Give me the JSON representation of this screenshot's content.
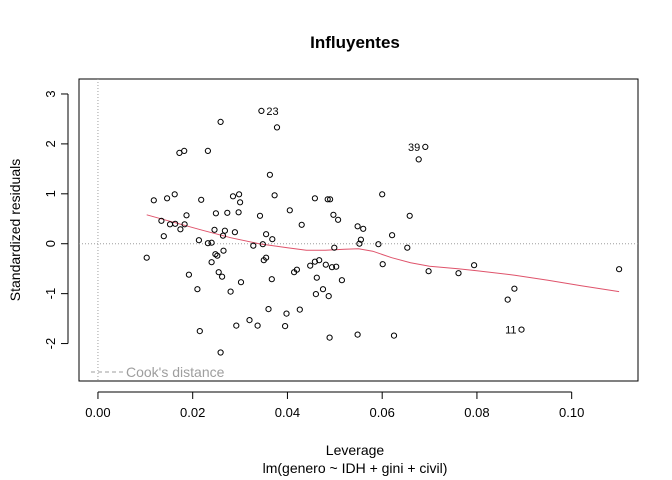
{
  "chart_data": {
    "type": "scatter",
    "title": "Influyentes",
    "xlabel": "Leverage",
    "xlabel2": "lm(genero ~ IDH + gini + civil)",
    "ylabel": "Standardized residuals",
    "xlim": [
      -0.004,
      0.114
    ],
    "ylim": [
      -2.75,
      3.3
    ],
    "x_ticks": [
      0.0,
      0.02,
      0.04,
      0.06,
      0.08,
      0.1
    ],
    "x_tick_labels": [
      "0.00",
      "0.02",
      "0.04",
      "0.06",
      "0.08",
      "0.10"
    ],
    "y_ticks": [
      -2,
      -1,
      0,
      1,
      2,
      3
    ],
    "y_tick_labels": [
      "-2",
      "-1",
      "0",
      "1",
      "2",
      "3"
    ],
    "legend": {
      "label": "Cook's distance",
      "position": "bottom-left",
      "color": "#9e9e9e"
    },
    "colors": {
      "points": "#000000",
      "smooth": "#df536b",
      "reference": "#9e9e9e"
    },
    "points": [
      [
        0.0103,
        -0.28
      ],
      [
        0.0118,
        0.87
      ],
      [
        0.0134,
        0.46
      ],
      [
        0.0139,
        0.15
      ],
      [
        0.0146,
        0.91
      ],
      [
        0.0152,
        0.39
      ],
      [
        0.0162,
        0.99
      ],
      [
        0.0163,
        0.4
      ],
      [
        0.0172,
        1.82
      ],
      [
        0.0174,
        0.29
      ],
      [
        0.0182,
        1.86
      ],
      [
        0.0183,
        0.39
      ],
      [
        0.0187,
        0.57
      ],
      [
        0.0192,
        -0.62
      ],
      [
        0.021,
        -0.91
      ],
      [
        0.0213,
        0.07
      ],
      [
        0.0215,
        -1.75
      ],
      [
        0.0218,
        0.88
      ],
      [
        0.0232,
        1.86
      ],
      [
        0.0232,
        0.01
      ],
      [
        0.024,
        0.02
      ],
      [
        0.024,
        -0.37
      ],
      [
        0.0246,
        0.28
      ],
      [
        0.0248,
        -0.21
      ],
      [
        0.0249,
        0.61
      ],
      [
        0.0252,
        -0.24
      ],
      [
        0.0255,
        -0.57
      ],
      [
        0.0259,
        2.44
      ],
      [
        0.0259,
        -2.18
      ],
      [
        0.0262,
        -0.66
      ],
      [
        0.0264,
        0.16
      ],
      [
        0.0265,
        -0.14
      ],
      [
        0.0268,
        0.26
      ],
      [
        0.0273,
        0.62
      ],
      [
        0.028,
        -0.96
      ],
      [
        0.0285,
        0.95
      ],
      [
        0.0289,
        0.23
      ],
      [
        0.0292,
        -1.64
      ],
      [
        0.0297,
        0.63
      ],
      [
        0.0298,
        0.99
      ],
      [
        0.03,
        0.83
      ],
      [
        0.0302,
        -0.77
      ],
      [
        0.032,
        -1.53
      ],
      [
        0.0328,
        -0.04
      ],
      [
        0.0337,
        -1.64
      ],
      [
        0.0342,
        0.56
      ],
      [
        0.0345,
        2.66
      ],
      [
        0.0348,
        -0.01
      ],
      [
        0.035,
        -0.33
      ],
      [
        0.0355,
        -0.28
      ],
      [
        0.0355,
        0.19
      ],
      [
        0.036,
        -1.31
      ],
      [
        0.0363,
        1.38
      ],
      [
        0.0367,
        -0.71
      ],
      [
        0.0368,
        0.09
      ],
      [
        0.0373,
        0.97
      ],
      [
        0.0378,
        2.33
      ],
      [
        0.0395,
        -1.65
      ],
      [
        0.0398,
        -1.4
      ],
      [
        0.0405,
        0.67
      ],
      [
        0.0414,
        -0.57
      ],
      [
        0.042,
        -0.52
      ],
      [
        0.0426,
        -1.32
      ],
      [
        0.043,
        0.38
      ],
      [
        0.0448,
        -0.44
      ],
      [
        0.0458,
        0.91
      ],
      [
        0.0458,
        -0.36
      ],
      [
        0.046,
        -1.01
      ],
      [
        0.0462,
        -0.68
      ],
      [
        0.0467,
        -0.33
      ],
      [
        0.0475,
        -0.91
      ],
      [
        0.0481,
        -0.42
      ],
      [
        0.0485,
        0.89
      ],
      [
        0.0487,
        -1.05
      ],
      [
        0.0489,
        -1.88
      ],
      [
        0.049,
        0.89
      ],
      [
        0.0494,
        -0.47
      ],
      [
        0.0497,
        0.58
      ],
      [
        0.0499,
        -0.08
      ],
      [
        0.0503,
        -0.46
      ],
      [
        0.0507,
        0.48
      ],
      [
        0.0515,
        -0.73
      ],
      [
        0.0548,
        -1.82
      ],
      [
        0.0548,
        0.35
      ],
      [
        0.0552,
        0.0
      ],
      [
        0.0555,
        0.08
      ],
      [
        0.056,
        0.3
      ],
      [
        0.0592,
        -0.01
      ],
      [
        0.06,
        0.99
      ],
      [
        0.0601,
        -0.41
      ],
      [
        0.0621,
        0.17
      ],
      [
        0.0625,
        -1.84
      ],
      [
        0.0653,
        -0.08
      ],
      [
        0.0658,
        0.56
      ],
      [
        0.0677,
        1.69
      ],
      [
        0.0691,
        1.94
      ],
      [
        0.0698,
        -0.55
      ],
      [
        0.0761,
        -0.59
      ],
      [
        0.0794,
        -0.43
      ],
      [
        0.0865,
        -1.12
      ],
      [
        0.0879,
        -0.9
      ],
      [
        0.0894,
        -1.72
      ],
      [
        0.11,
        -0.51
      ]
    ],
    "point_labels": [
      {
        "label": "23",
        "x": 0.0345,
        "y": 2.66
      },
      {
        "label": "39",
        "x": 0.0691,
        "y": 1.94
      },
      {
        "label": "11",
        "x": 0.0894,
        "y": -1.72
      }
    ],
    "smooth_line": [
      [
        0.0103,
        0.58
      ],
      [
        0.016,
        0.43
      ],
      [
        0.022,
        0.27
      ],
      [
        0.028,
        0.12
      ],
      [
        0.034,
        0.0
      ],
      [
        0.04,
        -0.08
      ],
      [
        0.044,
        -0.13
      ],
      [
        0.048,
        -0.13
      ],
      [
        0.052,
        -0.11
      ],
      [
        0.055,
        -0.1
      ],
      [
        0.058,
        -0.15
      ],
      [
        0.062,
        -0.28
      ],
      [
        0.066,
        -0.38
      ],
      [
        0.07,
        -0.45
      ],
      [
        0.076,
        -0.5
      ],
      [
        0.08,
        -0.54
      ],
      [
        0.088,
        -0.63
      ],
      [
        0.095,
        -0.73
      ],
      [
        0.102,
        -0.84
      ],
      [
        0.11,
        -0.96
      ]
    ]
  }
}
